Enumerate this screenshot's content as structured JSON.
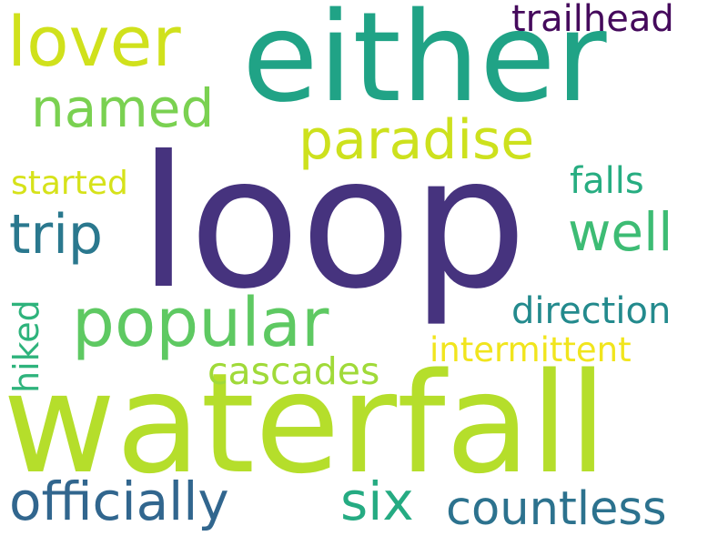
{
  "words": [
    {
      "id": "loop",
      "text": "loop",
      "color": "#46337e",
      "orientation": "horizontal"
    },
    {
      "id": "waterfall",
      "text": "waterfall",
      "color": "#b5de2b",
      "orientation": "horizontal"
    },
    {
      "id": "either",
      "text": "either",
      "color": "#20a386",
      "orientation": "horizontal"
    },
    {
      "id": "popular",
      "text": "popular",
      "color": "#5ec962",
      "orientation": "horizontal"
    },
    {
      "id": "lover",
      "text": "lover",
      "color": "#d0e11c",
      "orientation": "horizontal"
    },
    {
      "id": "paradise",
      "text": "paradise",
      "color": "#cde11d",
      "orientation": "horizontal"
    },
    {
      "id": "named",
      "text": "named",
      "color": "#7ad151",
      "orientation": "horizontal"
    },
    {
      "id": "trip",
      "text": "trip",
      "color": "#2a788e",
      "orientation": "horizontal"
    },
    {
      "id": "well",
      "text": "well",
      "color": "#3dbc74",
      "orientation": "horizontal"
    },
    {
      "id": "officially",
      "text": "officially",
      "color": "#31668e",
      "orientation": "horizontal"
    },
    {
      "id": "six",
      "text": "six",
      "color": "#25ab82",
      "orientation": "horizontal"
    },
    {
      "id": "countless",
      "text": "countless",
      "color": "#2c728e",
      "orientation": "horizontal"
    },
    {
      "id": "cascades",
      "text": "cascades",
      "color": "#a0da39",
      "orientation": "horizontal"
    },
    {
      "id": "trailhead",
      "text": "trailhead",
      "color": "#450a5c",
      "orientation": "horizontal"
    },
    {
      "id": "direction",
      "text": "direction",
      "color": "#238a8d",
      "orientation": "horizontal"
    },
    {
      "id": "intermittent",
      "text": "intermittent",
      "color": "#f1e51d",
      "orientation": "horizontal"
    },
    {
      "id": "falls",
      "text": "falls",
      "color": "#27ad81",
      "orientation": "horizontal"
    },
    {
      "id": "started",
      "text": "started",
      "color": "#d6e21a",
      "orientation": "horizontal"
    },
    {
      "id": "hiked",
      "text": "hiked",
      "color": "#2eb37c",
      "orientation": "vertical"
    }
  ]
}
